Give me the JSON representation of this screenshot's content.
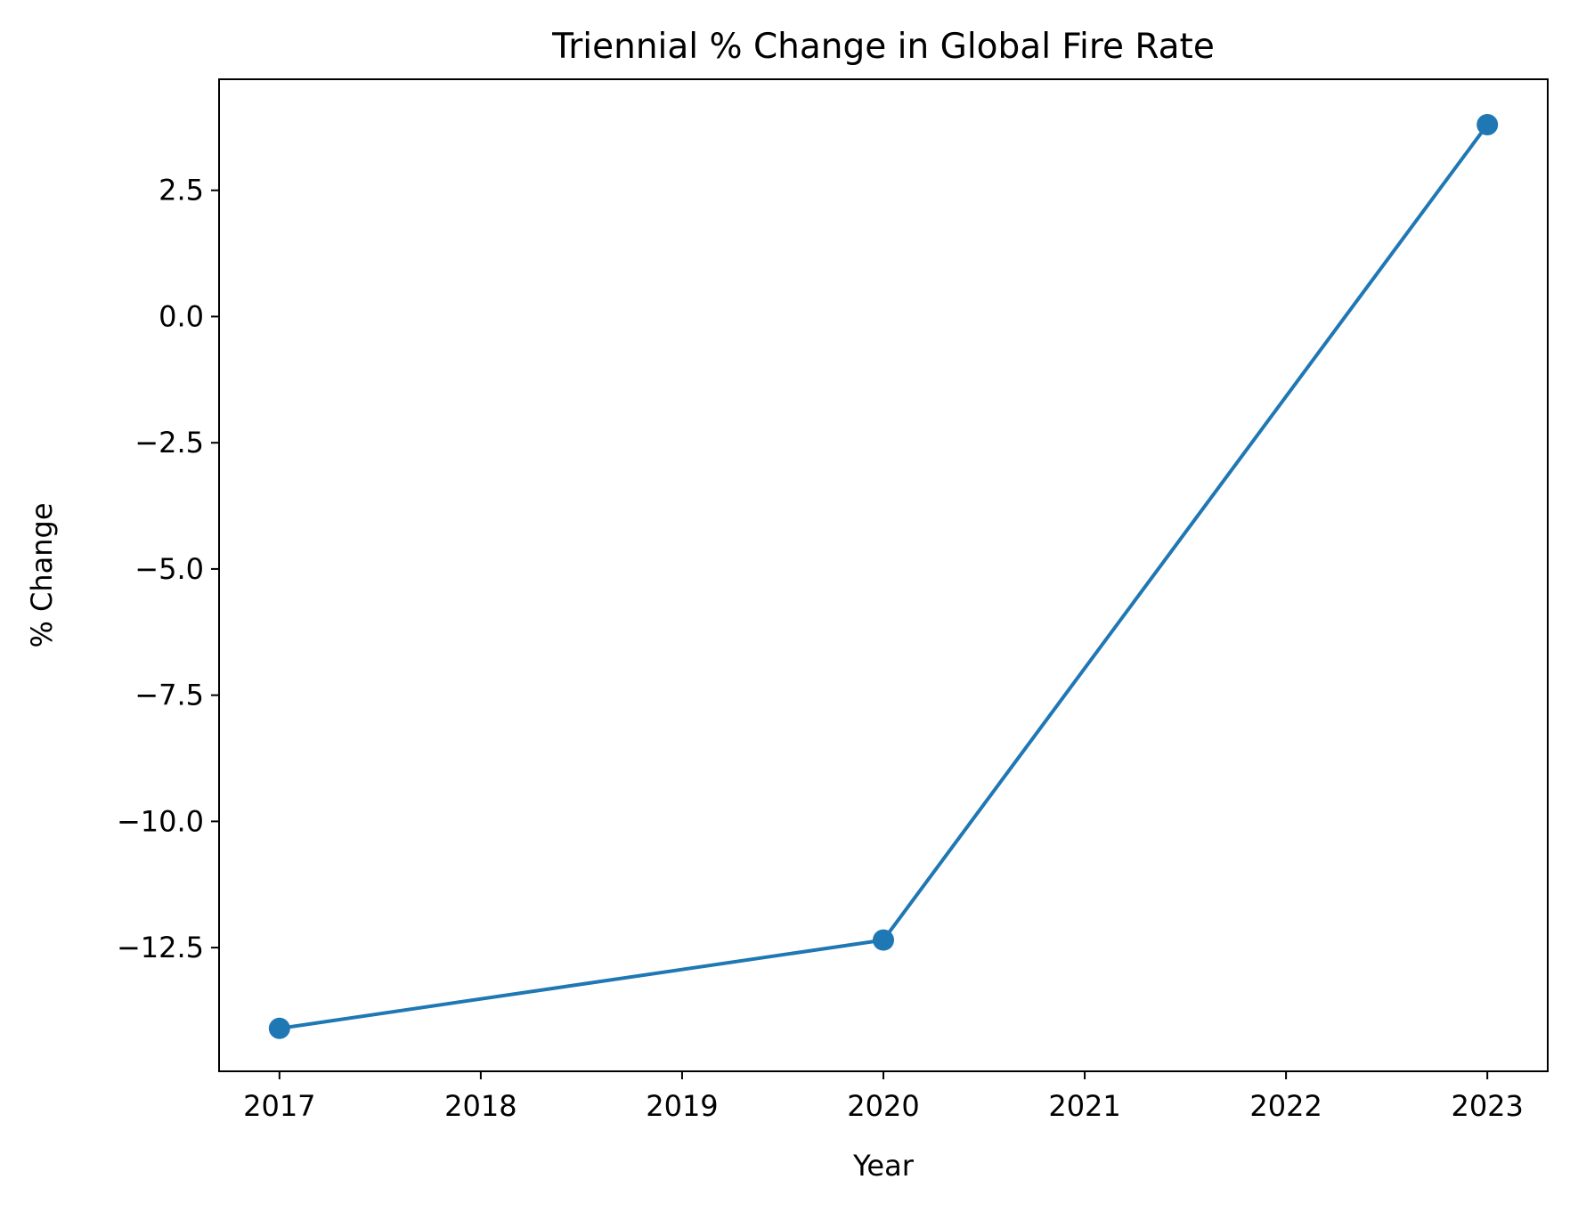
{
  "chart_data": {
    "type": "line",
    "title": "Triennial % Change in Global Fire Rate",
    "xlabel": "Year",
    "ylabel": "% Change",
    "x_ticks": [
      2017,
      2018,
      2019,
      2020,
      2021,
      2022,
      2023
    ],
    "x_tick_labels": [
      "2017",
      "2018",
      "2019",
      "2020",
      "2021",
      "2022",
      "2023"
    ],
    "y_ticks": [
      -12.5,
      -10.0,
      -7.5,
      -5.0,
      -2.5,
      0.0,
      2.5
    ],
    "y_tick_labels": [
      "−12.5",
      "−10.0",
      "−7.5",
      "−5.0",
      "−2.5",
      "0.0",
      "2.5"
    ],
    "xlim": [
      2016.7,
      2023.3
    ],
    "ylim": [
      -14.95,
      4.7
    ],
    "grid": false,
    "series": [
      {
        "color": "#1f77b4",
        "marker": "circle",
        "points": [
          {
            "x": 2017,
            "y": -14.1
          },
          {
            "x": 2020,
            "y": -12.35
          },
          {
            "x": 2023,
            "y": 3.8
          }
        ]
      }
    ]
  }
}
